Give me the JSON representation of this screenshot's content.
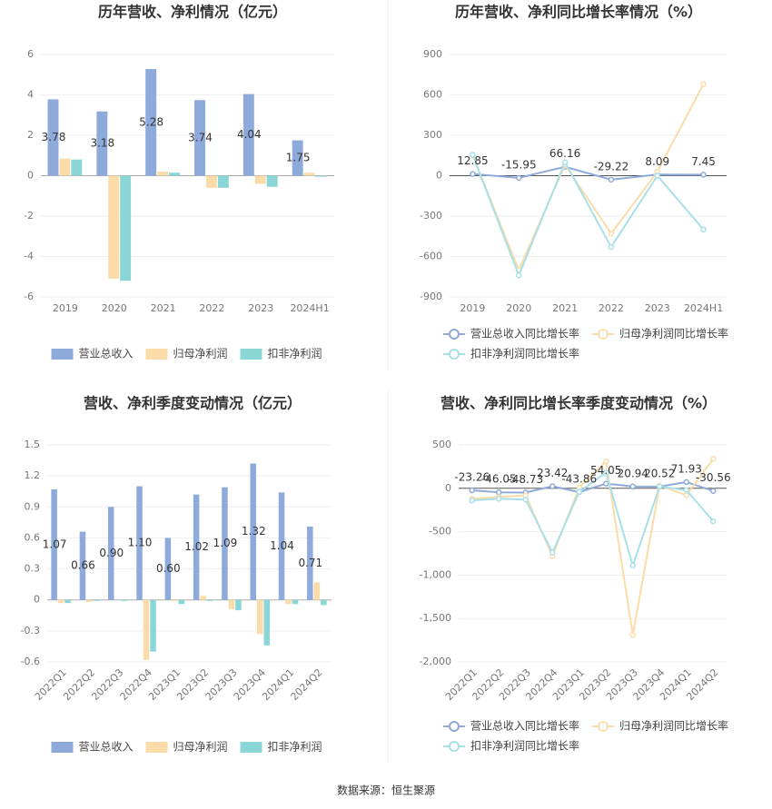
{
  "chart_data": [
    {
      "type": "bar",
      "title": "历年营收、净利情况（亿元）",
      "categories": [
        "2019",
        "2020",
        "2021",
        "2022",
        "2023",
        "2024H1"
      ],
      "series": [
        {
          "name": "营业总收入",
          "color": "#8eaadb",
          "values": [
            3.78,
            3.18,
            5.28,
            3.74,
            4.04,
            1.75
          ]
        },
        {
          "name": "归母净利润",
          "color": "#fbdca8",
          "values": [
            0.85,
            -5.1,
            0.2,
            -0.6,
            -0.4,
            0.15
          ]
        },
        {
          "name": "扣非净利润",
          "color": "#8ad6d6",
          "values": [
            0.8,
            -5.2,
            0.15,
            -0.6,
            -0.55,
            -0.05
          ]
        }
      ],
      "ylim": [
        -6,
        6
      ],
      "yticks": [
        -6,
        -4,
        -2,
        0,
        2,
        4,
        6
      ],
      "grid": true
    },
    {
      "type": "line",
      "title": "历年营收、净利同比增长率情况（%）",
      "categories": [
        "2019",
        "2020",
        "2021",
        "2022",
        "2023",
        "2024H1"
      ],
      "series": [
        {
          "name": "营业总收入同比增长率",
          "color": "#8eaadb",
          "values": [
            12.85,
            -15.95,
            66.16,
            -29.22,
            8.09,
            7.45
          ]
        },
        {
          "name": "归母净利润同比增长率",
          "color": "#fbdca8",
          "values": [
            150,
            -700,
            80,
            -430,
            30,
            680
          ]
        },
        {
          "name": "扣非净利润同比增长率",
          "color": "#a8e0e8",
          "values": [
            155,
            -740,
            100,
            -530,
            0,
            -400
          ]
        }
      ],
      "ylim": [
        -900,
        900
      ],
      "yticks": [
        -900,
        -600,
        -300,
        0,
        300,
        600,
        900
      ],
      "grid": true
    },
    {
      "type": "bar",
      "title": "营收、净利季度变动情况（亿元）",
      "categories": [
        "2022Q1",
        "2022Q2",
        "2022Q3",
        "2022Q4",
        "2023Q1",
        "2023Q2",
        "2023Q3",
        "2023Q4",
        "2024Q1",
        "2024Q2"
      ],
      "series": [
        {
          "name": "营业总收入",
          "color": "#8eaadb",
          "values": [
            1.07,
            0.66,
            0.9,
            1.1,
            0.6,
            1.02,
            1.09,
            1.32,
            1.04,
            0.71
          ],
          "value_labels": [
            "1.07",
            "0.66",
            "0.90",
            "1.10",
            "0.60",
            "1.02",
            "1.09",
            "1.32",
            "1.04",
            "0.71"
          ]
        },
        {
          "name": "归母净利润",
          "color": "#fbdca8",
          "values": [
            -0.03,
            -0.02,
            0.0,
            -0.58,
            -0.01,
            0.04,
            -0.09,
            -0.33,
            -0.04,
            0.17
          ]
        },
        {
          "name": "扣非净利润",
          "color": "#8ad6d6",
          "values": [
            -0.03,
            -0.01,
            -0.01,
            -0.5,
            -0.04,
            -0.01,
            -0.1,
            -0.44,
            -0.04,
            -0.05
          ]
        }
      ],
      "ylim": [
        -0.6,
        1.5
      ],
      "yticks": [
        -0.6,
        -0.3,
        0,
        0.3,
        0.6,
        0.9,
        1.2,
        1.5
      ],
      "grid": true
    },
    {
      "type": "line",
      "title": "营收、净利同比增长率季度变动情况（%）",
      "categories": [
        "2022Q1",
        "2022Q2",
        "2022Q3",
        "2022Q4",
        "2023Q1",
        "2023Q2",
        "2023Q3",
        "2023Q4",
        "2024Q1",
        "2024Q2"
      ],
      "series": [
        {
          "name": "营业总收入同比增长率",
          "color": "#8eaadb",
          "values": [
            -23.26,
            -46.05,
            -48.73,
            23.42,
            -43.86,
            54.05,
            20.94,
            20.52,
            71.93,
            -30.56
          ]
        },
        {
          "name": "归母净利润同比增长率",
          "color": "#fbdca8",
          "values": [
            -120,
            -100,
            -80,
            -780,
            10,
            310,
            -1690,
            30,
            -80,
            340
          ]
        },
        {
          "name": "扣非净利润同比增长率",
          "color": "#a8e0e8",
          "values": [
            -140,
            -120,
            -130,
            -740,
            -40,
            180,
            -890,
            20,
            -20,
            -380
          ]
        }
      ],
      "ylim": [
        -2000,
        500
      ],
      "yticks": [
        {
          "value": -2000,
          "label": "-2,000"
        },
        {
          "value": -1500,
          "label": "-1,500"
        },
        {
          "value": -1000,
          "label": "-1,000"
        },
        -500,
        0,
        500
      ],
      "grid": true
    }
  ],
  "source": "数据来源：恒生聚源"
}
